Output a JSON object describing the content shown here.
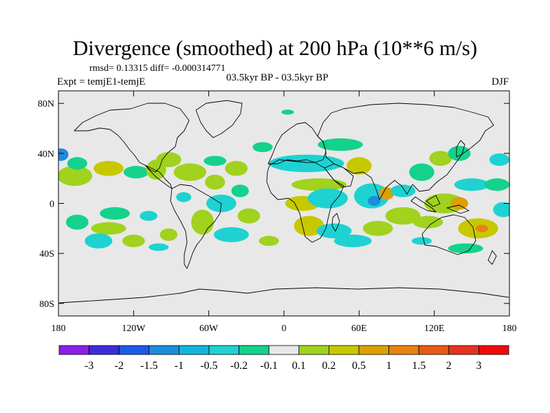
{
  "chart_data": {
    "type": "heatmap",
    "title": "Divergence (smoothed) at 200 hPa (10**6 m/s)",
    "stats_label": "rmsd= 0.13315 diff= -0.000314771",
    "experiment_label": "Expt = temjE1-temjE",
    "period_label": "03.5kyr BP - 03.5kyr BP",
    "season_label": "DJF",
    "lat_ticks": [
      {
        "value": 80,
        "label": "80N"
      },
      {
        "value": 40,
        "label": "40N"
      },
      {
        "value": 0,
        "label": "0"
      },
      {
        "value": -40,
        "label": "40S"
      },
      {
        "value": -80,
        "label": "80S"
      }
    ],
    "lon_ticks": [
      {
        "value": -180,
        "label": "180"
      },
      {
        "value": -120,
        "label": "120W"
      },
      {
        "value": -60,
        "label": "60W"
      },
      {
        "value": 0,
        "label": "0"
      },
      {
        "value": 60,
        "label": "60E"
      },
      {
        "value": 120,
        "label": "120E"
      },
      {
        "value": 180,
        "label": "180"
      }
    ],
    "xlim": [
      -180,
      180
    ],
    "ylim": [
      -90,
      90
    ],
    "colorbar": {
      "colors": [
        "#8c1ee6",
        "#3c2ddc",
        "#1e5ae6",
        "#1e8cdc",
        "#14b4dc",
        "#1ed2d2",
        "#14d28c",
        "#e8e8e8",
        "#a0d21e",
        "#c8c800",
        "#dca000",
        "#e68214",
        "#e65a14",
        "#e6321e",
        "#f00a0a"
      ],
      "labels": [
        "-3",
        "-2",
        "-1.5",
        "-1",
        "-0.5",
        "-0.2",
        "-0.1",
        "0.1",
        "0.2",
        "0.5",
        "1",
        "1.5",
        "2",
        "3"
      ]
    },
    "blobs": [
      {
        "lon": -167,
        "lat": 22,
        "rx": 14,
        "ry": 8,
        "color": "#a0d21e"
      },
      {
        "lon": -165,
        "lat": 32,
        "rx": 8,
        "ry": 5,
        "color": "#14d28c"
      },
      {
        "lon": -178,
        "lat": 39,
        "rx": 6,
        "ry": 5,
        "color": "#1e8cdc"
      },
      {
        "lon": -140,
        "lat": 28,
        "rx": 12,
        "ry": 6,
        "color": "#c8c800"
      },
      {
        "lon": -118,
        "lat": 25,
        "rx": 10,
        "ry": 5,
        "color": "#14d28c"
      },
      {
        "lon": -102,
        "lat": 27,
        "rx": 8,
        "ry": 8,
        "color": "#a0d21e"
      },
      {
        "lon": -92,
        "lat": 35,
        "rx": 10,
        "ry": 6,
        "color": "#a0d21e"
      },
      {
        "lon": -75,
        "lat": 25,
        "rx": 13,
        "ry": 7,
        "color": "#a0d21e"
      },
      {
        "lon": -55,
        "lat": 17,
        "rx": 8,
        "ry": 6,
        "color": "#a0d21e"
      },
      {
        "lon": -55,
        "lat": 34,
        "rx": 9,
        "ry": 4,
        "color": "#14d28c"
      },
      {
        "lon": -17,
        "lat": 45,
        "rx": 8,
        "ry": 4,
        "color": "#14d28c"
      },
      {
        "lon": 3,
        "lat": 73,
        "rx": 5,
        "ry": 2,
        "color": "#14d28c"
      },
      {
        "lon": -38,
        "lat": 28,
        "rx": 9,
        "ry": 6,
        "color": "#a0d21e"
      },
      {
        "lon": -165,
        "lat": -15,
        "rx": 9,
        "ry": 6,
        "color": "#14d28c"
      },
      {
        "lon": -135,
        "lat": -8,
        "rx": 12,
        "ry": 5,
        "color": "#14d28c"
      },
      {
        "lon": -140,
        "lat": -20,
        "rx": 14,
        "ry": 5,
        "color": "#a0d21e"
      },
      {
        "lon": -148,
        "lat": -30,
        "rx": 11,
        "ry": 6,
        "color": "#1ed2d2"
      },
      {
        "lon": -120,
        "lat": -30,
        "rx": 9,
        "ry": 5,
        "color": "#a0d21e"
      },
      {
        "lon": -108,
        "lat": -10,
        "rx": 7,
        "ry": 4,
        "color": "#1ed2d2"
      },
      {
        "lon": -92,
        "lat": -25,
        "rx": 7,
        "ry": 5,
        "color": "#a0d21e"
      },
      {
        "lon": -80,
        "lat": 5,
        "rx": 6,
        "ry": 4,
        "color": "#1ed2d2"
      },
      {
        "lon": -65,
        "lat": -15,
        "rx": 9,
        "ry": 10,
        "color": "#a0d21e"
      },
      {
        "lon": -50,
        "lat": 0,
        "rx": 12,
        "ry": 7,
        "color": "#1ed2d2"
      },
      {
        "lon": -42,
        "lat": -25,
        "rx": 14,
        "ry": 6,
        "color": "#1ed2d2"
      },
      {
        "lon": -28,
        "lat": -10,
        "rx": 9,
        "ry": 6,
        "color": "#a0d21e"
      },
      {
        "lon": -35,
        "lat": 10,
        "rx": 7,
        "ry": 5,
        "color": "#14d28c"
      },
      {
        "lon": -12,
        "lat": -30,
        "rx": 8,
        "ry": 4,
        "color": "#a0d21e"
      },
      {
        "lon": 18,
        "lat": 32,
        "rx": 30,
        "ry": 7,
        "color": "#1ed2d2"
      },
      {
        "lon": 45,
        "lat": 47,
        "rx": 18,
        "ry": 5,
        "color": "#14d28c"
      },
      {
        "lon": 60,
        "lat": 30,
        "rx": 10,
        "ry": 7,
        "color": "#c8c800"
      },
      {
        "lon": 28,
        "lat": 15,
        "rx": 22,
        "ry": 5,
        "color": "#a0d21e"
      },
      {
        "lon": 15,
        "lat": 0,
        "rx": 14,
        "ry": 6,
        "color": "#c8c800"
      },
      {
        "lon": 35,
        "lat": 4,
        "rx": 16,
        "ry": 8,
        "color": "#1ed2d2"
      },
      {
        "lon": 70,
        "lat": 6,
        "rx": 14,
        "ry": 10,
        "color": "#1ed2d2"
      },
      {
        "lon": 72,
        "lat": 2,
        "rx": 5,
        "ry": 4,
        "color": "#1e8cdc"
      },
      {
        "lon": 82,
        "lat": 8,
        "rx": 6,
        "ry": 5,
        "color": "#dca000"
      },
      {
        "lon": 20,
        "lat": -18,
        "rx": 12,
        "ry": 8,
        "color": "#c8c800"
      },
      {
        "lon": 40,
        "lat": -22,
        "rx": 14,
        "ry": 6,
        "color": "#1ed2d2"
      },
      {
        "lon": 55,
        "lat": -30,
        "rx": 15,
        "ry": 5,
        "color": "#1ed2d2"
      },
      {
        "lon": 75,
        "lat": -20,
        "rx": 12,
        "ry": 6,
        "color": "#a0d21e"
      },
      {
        "lon": 95,
        "lat": -10,
        "rx": 14,
        "ry": 7,
        "color": "#a0d21e"
      },
      {
        "lon": 95,
        "lat": 10,
        "rx": 10,
        "ry": 5,
        "color": "#1ed2d2"
      },
      {
        "lon": 110,
        "lat": 25,
        "rx": 10,
        "ry": 7,
        "color": "#14d28c"
      },
      {
        "lon": 125,
        "lat": 36,
        "rx": 9,
        "ry": 6,
        "color": "#a0d21e"
      },
      {
        "lon": 140,
        "lat": 40,
        "rx": 9,
        "ry": 6,
        "color": "#14d28c"
      },
      {
        "lon": 150,
        "lat": 15,
        "rx": 14,
        "ry": 5,
        "color": "#1ed2d2"
      },
      {
        "lon": 170,
        "lat": 15,
        "rx": 10,
        "ry": 5,
        "color": "#14d28c"
      },
      {
        "lon": 128,
        "lat": 0,
        "rx": 16,
        "ry": 8,
        "color": "#a0d21e"
      },
      {
        "lon": 140,
        "lat": 0,
        "rx": 7,
        "ry": 5,
        "color": "#dca000"
      },
      {
        "lon": 115,
        "lat": -15,
        "rx": 12,
        "ry": 5,
        "color": "#a0d21e"
      },
      {
        "lon": 155,
        "lat": -20,
        "rx": 16,
        "ry": 8,
        "color": "#c8c800"
      },
      {
        "lon": 158,
        "lat": -20,
        "rx": 5,
        "ry": 3,
        "color": "#e68214"
      },
      {
        "lon": 145,
        "lat": -36,
        "rx": 14,
        "ry": 4,
        "color": "#14d28c"
      },
      {
        "lon": 175,
        "lat": -5,
        "rx": 8,
        "ry": 6,
        "color": "#1ed2d2"
      },
      {
        "lon": 172,
        "lat": 35,
        "rx": 8,
        "ry": 5,
        "color": "#1ed2d2"
      },
      {
        "lon": 110,
        "lat": -30,
        "rx": 8,
        "ry": 3,
        "color": "#1ed2d2"
      },
      {
        "lon": -100,
        "lat": -35,
        "rx": 8,
        "ry": 3,
        "color": "#1ed2d2"
      }
    ]
  }
}
